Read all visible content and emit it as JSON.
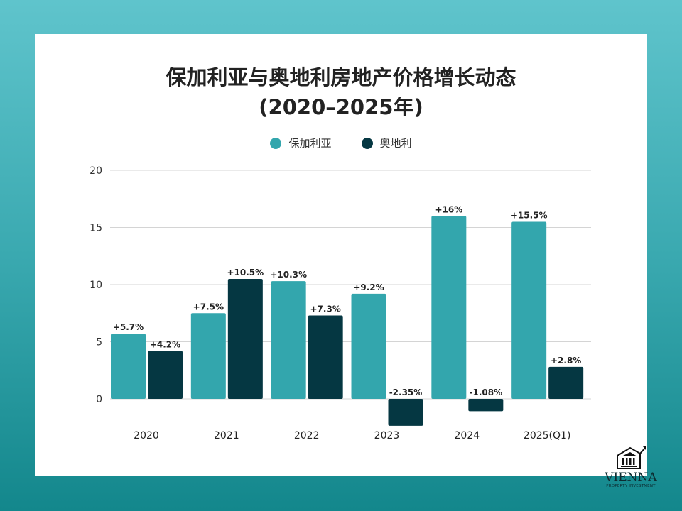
{
  "chart_data": {
    "type": "bar",
    "title": "保加利亚与奥地利房地产价格增长动态\n(2020–2025年)",
    "title_lines": [
      "保加利亚与奥地利房地产价格增长动态",
      "(2020–2025年)"
    ],
    "categories": [
      "2020",
      "2021",
      "2022",
      "2023",
      "2024",
      "2025(Q1)"
    ],
    "series": [
      {
        "name": "保加利亚",
        "color": "#33a6ad",
        "values": [
          5.7,
          7.5,
          10.3,
          9.2,
          16,
          15.5
        ],
        "labels": [
          "+5.7%",
          "+7.5%",
          "+10.3%",
          "+9.2%",
          "+16%",
          "+15.5%"
        ]
      },
      {
        "name": "奥地利",
        "color": "#053742",
        "values": [
          4.2,
          10.5,
          7.3,
          -2.35,
          -1.08,
          2.8
        ],
        "labels": [
          "+4.2%",
          "+10.5%",
          "+7.3%",
          "-2.35%",
          "-1.08%",
          "+2.8%"
        ]
      }
    ],
    "yticks": [
      "0",
      "5",
      "10",
      "15",
      "20"
    ],
    "ylim": [
      -2.5,
      20
    ],
    "grid": true,
    "legend": "top-center",
    "xlabel": "",
    "ylabel": ""
  },
  "logo": {
    "name": "VIENNA",
    "sub": "PROPERTY INVESTMENT"
  }
}
